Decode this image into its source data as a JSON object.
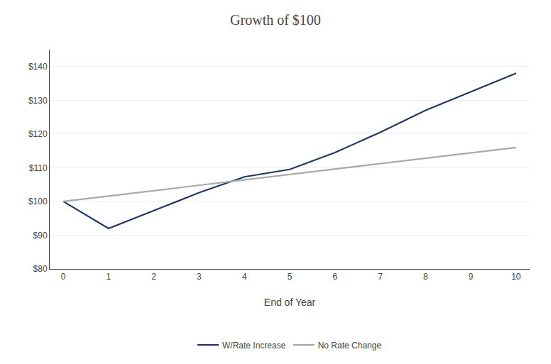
{
  "chart_data": {
    "type": "line",
    "title": "Growth of $100",
    "xlabel": "End of Year",
    "x": [
      0,
      1,
      2,
      3,
      4,
      5,
      6,
      7,
      8,
      9,
      10
    ],
    "series": [
      {
        "name": "W/Rate Increase",
        "color": "#1F3864",
        "values": [
          100,
          92,
          97.3,
          102.6,
          107.3,
          109.5,
          114.5,
          120.5,
          127.0,
          132.5,
          138
        ]
      },
      {
        "name": "No Rate Change",
        "color": "#A9A9A9",
        "values": [
          100,
          101.6,
          103.2,
          104.8,
          106.4,
          108.0,
          109.6,
          111.2,
          112.8,
          114.4,
          116
        ]
      }
    ],
    "xlim": [
      -0.3,
      10.3
    ],
    "ylim": [
      80,
      145
    ],
    "xticks": [
      0,
      1,
      2,
      3,
      4,
      5,
      6,
      7,
      8,
      9,
      10
    ],
    "yticks": [
      {
        "value": 80,
        "label": "$80"
      },
      {
        "value": 90,
        "label": "$90"
      },
      {
        "value": 100,
        "label": "$100"
      },
      {
        "value": 110,
        "label": "$110"
      },
      {
        "value": 120,
        "label": "$120"
      },
      {
        "value": 130,
        "label": "$130"
      },
      {
        "value": 140,
        "label": "$140"
      }
    ],
    "grid": "y",
    "legend": "bottom"
  }
}
